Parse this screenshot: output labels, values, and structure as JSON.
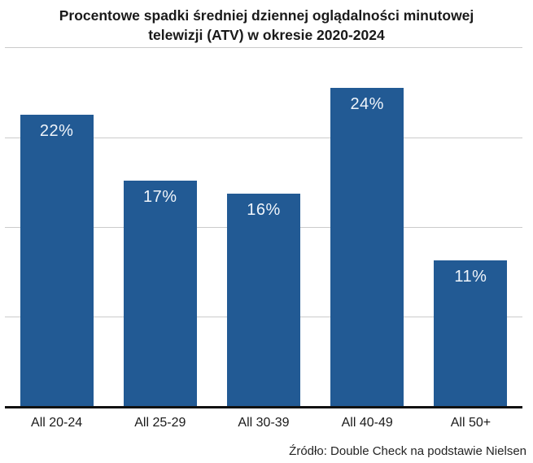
{
  "header": {
    "title_line1": "Procentowe spadki średniej dziennej oglądalności minutowej",
    "title_line2": "telewizji (ATV) w okresie 2020-2024"
  },
  "chart_data": {
    "type": "bar",
    "title": "Procentowe spadki średniej dziennej oglądalności minutowej telewizji (ATV) w okresie 2020-2024",
    "categories": [
      "All 20-24",
      "All 25-29",
      "All 30-39",
      "All 40-49",
      "All 50+"
    ],
    "values": [
      22,
      17,
      16,
      24,
      11
    ],
    "data_labels": [
      "22%",
      "17%",
      "16%",
      "24%",
      "11%"
    ],
    "xlabel": "",
    "ylabel": "",
    "ylim": [
      0,
      27
    ],
    "grid": "horizontal",
    "grid_divisions": 4,
    "legend": "none",
    "bar_color": "#225a94",
    "data_label_color": "#f0f5fb",
    "gridline_color": "#cbcbcb",
    "axis_color": "#111111"
  },
  "footer": {
    "source": "Źródło: Double Check na podstawie Nielsen"
  }
}
